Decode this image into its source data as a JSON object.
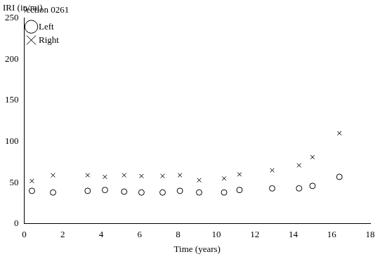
{
  "chart_data": {
    "type": "scatter",
    "legend_title": "Section 0261",
    "y_label": "IRI (in/mi)",
    "x_label": "Time (years)",
    "x": [
      0.4,
      1.5,
      3.3,
      4.2,
      5.2,
      6.1,
      7.2,
      8.1,
      9.1,
      10.4,
      11.2,
      12.9,
      14.3,
      15.0,
      16.4
    ],
    "series": [
      {
        "name": "Left",
        "color": "#000000",
        "marker": "circle",
        "values": [
          40,
          38,
          40,
          41,
          39,
          38,
          38,
          40,
          38,
          38,
          41,
          43,
          43,
          46,
          57
        ]
      },
      {
        "name": "Right",
        "color": "#000000",
        "marker": "cross",
        "values": [
          52,
          59,
          59,
          57,
          59,
          58,
          58,
          59,
          53,
          55,
          60,
          65,
          71,
          81,
          110
        ]
      }
    ],
    "xlim": [
      0,
      18
    ],
    "xticks": [
      0,
      2,
      4,
      6,
      8,
      10,
      12,
      14,
      16,
      18
    ],
    "ylim": [
      0,
      250
    ],
    "yticks": [
      0,
      50,
      100,
      150,
      200,
      250
    ],
    "grid": false,
    "legend": "upper left"
  }
}
